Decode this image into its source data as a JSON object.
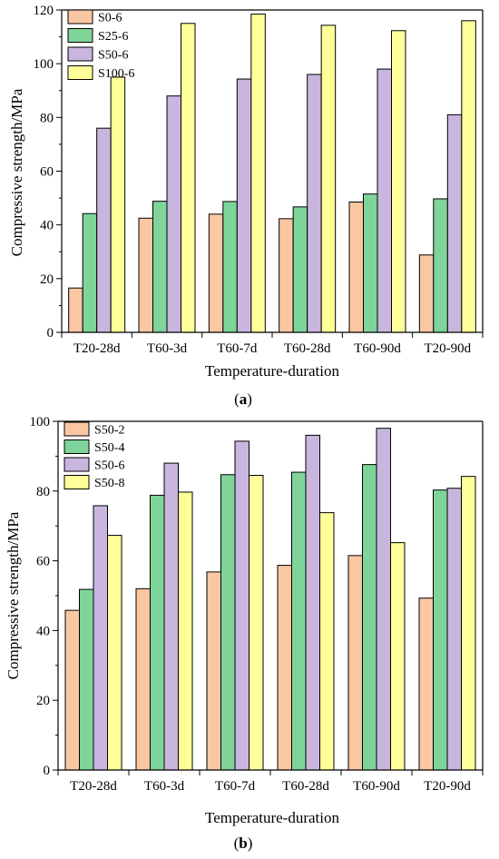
{
  "chart_data": [
    {
      "type": "bar",
      "caption_letter": "a",
      "categories": [
        "T20-28d",
        "T60-3d",
        "T60-7d",
        "T60-28d",
        "T60-90d",
        "T20-90d"
      ],
      "series": [
        {
          "name": "S0-6",
          "color": "#F9C7A2",
          "values": [
            16.5,
            42.5,
            44,
            42.3,
            48.5,
            28.8
          ]
        },
        {
          "name": "S25-6",
          "color": "#7FD49A",
          "values": [
            44.2,
            48.8,
            48.7,
            46.7,
            51.5,
            49.7
          ]
        },
        {
          "name": "S50-6",
          "color": "#C9B6DF",
          "values": [
            76,
            88,
            94.3,
            96,
            98,
            81
          ]
        },
        {
          "name": "S100-6",
          "color": "#FFFF99",
          "values": [
            95,
            115,
            118.5,
            114.3,
            112.3,
            116
          ]
        }
      ],
      "xlabel": "Temperature-duration",
      "ylabel": "Compressive strength/MPa",
      "ylim": [
        0,
        120
      ],
      "yticks": [
        "0",
        "20",
        "40",
        "60",
        "80",
        "100",
        "120"
      ],
      "legend_position": "top-left",
      "grid": false
    },
    {
      "type": "bar",
      "caption_letter": "b",
      "categories": [
        "T20-28d",
        "T60-3d",
        "T60-7d",
        "T60-28d",
        "T60-90d",
        "T20-90d"
      ],
      "series": [
        {
          "name": "S50-2",
          "color": "#F9C7A2",
          "values": [
            45.8,
            52,
            56.8,
            58.7,
            61.5,
            49.3
          ]
        },
        {
          "name": "S50-4",
          "color": "#7FD49A",
          "values": [
            51.8,
            78.8,
            84.7,
            85.4,
            87.6,
            80.3
          ]
        },
        {
          "name": "S50-6",
          "color": "#C9B6DF",
          "values": [
            75.8,
            88,
            94.3,
            96,
            98,
            80.8
          ]
        },
        {
          "name": "S50-8",
          "color": "#FFFF99",
          "values": [
            67.3,
            79.7,
            84.5,
            73.8,
            65.2,
            84.2
          ]
        }
      ],
      "xlabel": "Temperature-duration",
      "ylabel": "Compressive strength/MPa",
      "ylim": [
        0,
        100
      ],
      "yticks": [
        "0",
        "20",
        "40",
        "60",
        "80",
        "100"
      ],
      "legend_position": "top-left",
      "grid": false
    }
  ]
}
